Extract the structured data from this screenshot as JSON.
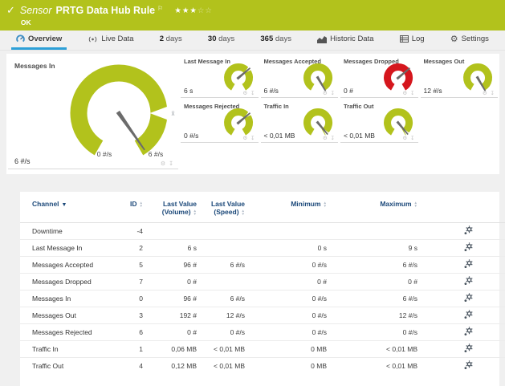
{
  "header": {
    "sensor_label": "Sensor",
    "title": "PRTG Data Hub Rule",
    "status": "OK",
    "rating_filled": 3,
    "rating_total": 5
  },
  "tabs": [
    {
      "label": "Overview",
      "icon": "overview-gauge-icon",
      "active": true
    },
    {
      "label": "Live Data",
      "icon": "broadcast-icon",
      "active": false
    },
    {
      "num": "2",
      "label": "days",
      "active": false
    },
    {
      "num": "30",
      "label": "days",
      "active": false
    },
    {
      "num": "365",
      "label": "days",
      "active": false
    },
    {
      "label": "Historic Data",
      "icon": "bar-chart-icon",
      "active": false
    },
    {
      "label": "Log",
      "icon": "log-icon",
      "active": false
    },
    {
      "label": "Settings",
      "icon": "gear-icon",
      "active": false
    }
  ],
  "colors": {
    "green": "#b2c21c",
    "red": "#d5161d",
    "needle": "#6b6b6b",
    "tab_underline": "#2da0d8",
    "table_header": "#1b4879"
  },
  "main_gauge": {
    "label": "Messages In",
    "value": "6 #/s",
    "scale_min": "0 #/s",
    "scale_max": "6 #/s",
    "color": "#b2c21c",
    "needle_deg": 145,
    "notch_deg": 90,
    "avg_marker": "x̄"
  },
  "mini_gauges": [
    {
      "label": "Last Message In",
      "value": "6 s",
      "color": "#b2c21c",
      "needle_deg": 50,
      "notch": true
    },
    {
      "label": "Messages Accepted",
      "value": "6 #/s",
      "color": "#b2c21c",
      "needle_deg": 150,
      "notch": false
    },
    {
      "label": "Messages Dropped",
      "value": "0 #",
      "color": "#d5161d",
      "needle_deg": 50,
      "notch": false
    },
    {
      "label": "Messages Out",
      "value": "12 #/s",
      "color": "#b2c21c",
      "needle_deg": 150,
      "notch": false
    },
    {
      "label": "Messages Rejected",
      "value": "0 #/s",
      "color": "#b2c21c",
      "needle_deg": 50,
      "notch": true
    },
    {
      "label": "Traffic In",
      "value": "< 0,01 MB",
      "color": "#b2c21c",
      "needle_deg": 140,
      "notch": true
    },
    {
      "label": "Traffic Out",
      "value": "< 0,01 MB",
      "color": "#b2c21c",
      "needle_deg": 140,
      "notch": true
    }
  ],
  "table": {
    "columns": [
      {
        "label": "Channel",
        "sorted": true
      },
      {
        "label": "ID",
        "sortable": true
      },
      {
        "label": "Last Value",
        "label2": "(Volume)",
        "sortable": true
      },
      {
        "label": "Last Value",
        "label2": "(Speed)",
        "sortable": true
      },
      {
        "label": "Minimum",
        "sortable": true
      },
      {
        "label": "Maximum",
        "sortable": true
      },
      {
        "label": ""
      }
    ],
    "rows": [
      {
        "channel": "Downtime",
        "id": "-4",
        "last_volume": "",
        "last_speed": "",
        "minimum": "",
        "maximum": ""
      },
      {
        "channel": "Last Message In",
        "id": "2",
        "last_volume": "6 s",
        "last_speed": "",
        "minimum": "0 s",
        "maximum": "9 s"
      },
      {
        "channel": "Messages Accepted",
        "id": "5",
        "last_volume": "96 #",
        "last_speed": "6 #/s",
        "minimum": "0 #/s",
        "maximum": "6 #/s"
      },
      {
        "channel": "Messages Dropped",
        "id": "7",
        "last_volume": "0 #",
        "last_speed": "",
        "minimum": "0 #",
        "maximum": "0 #"
      },
      {
        "channel": "Messages In",
        "id": "0",
        "last_volume": "96 #",
        "last_speed": "6 #/s",
        "minimum": "0 #/s",
        "maximum": "6 #/s"
      },
      {
        "channel": "Messages Out",
        "id": "3",
        "last_volume": "192 #",
        "last_speed": "12 #/s",
        "minimum": "0 #/s",
        "maximum": "12 #/s"
      },
      {
        "channel": "Messages Rejected",
        "id": "6",
        "last_volume": "0 #",
        "last_speed": "0 #/s",
        "minimum": "0 #/s",
        "maximum": "0 #/s"
      },
      {
        "channel": "Traffic In",
        "id": "1",
        "last_volume": "0,06 MB",
        "last_speed": "< 0,01 MB",
        "minimum": "0 MB",
        "maximum": "< 0,01 MB"
      },
      {
        "channel": "Traffic Out",
        "id": "4",
        "last_volume": "0,12 MB",
        "last_speed": "< 0,01 MB",
        "minimum": "0 MB",
        "maximum": "< 0,01 MB"
      }
    ]
  },
  "tile_icons": {
    "gear": "⚙",
    "pin": "↧"
  }
}
